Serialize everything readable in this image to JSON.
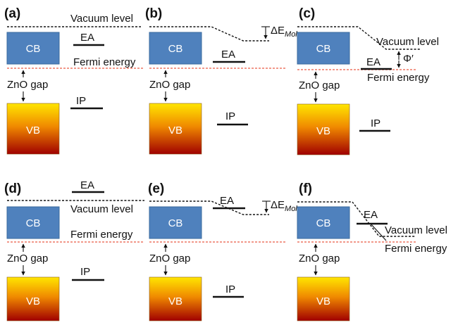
{
  "labels": {
    "cb": "CB",
    "vb": "VB",
    "gap": "ZnO gap",
    "ea": "EA",
    "ip": "IP",
    "vacuum": "Vacuum level",
    "fermi": "Fermi energy",
    "delta_e_prefix": "ΔE",
    "delta_e_sub": "Mol",
    "phi": "Φ′"
  },
  "panels": [
    {
      "id": "a",
      "label": "(a)"
    },
    {
      "id": "b",
      "label": "(b)"
    },
    {
      "id": "c",
      "label": "(c)"
    },
    {
      "id": "d",
      "label": "(d)"
    },
    {
      "id": "e",
      "label": "(e)"
    },
    {
      "id": "f",
      "label": "(f)"
    }
  ],
  "colors": {
    "cb": "#4f81bd",
    "vb_top": "#ffe600",
    "vb_mid": "#f08a00",
    "vb_bottom": "#a00000",
    "fermi": "#f08a7a"
  }
}
